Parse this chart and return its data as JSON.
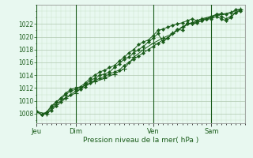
{
  "bg_color": "#e8f8f0",
  "plot_bg_color": "#e8f8f0",
  "grid_major_color": "#b0c8b0",
  "grid_minor_color": "#c8e0c8",
  "line_color": "#1a5c1a",
  "title": "Pression niveau de la mer( hPa )",
  "ylim": [
    1006.5,
    1025.0
  ],
  "yticks": [
    1008,
    1010,
    1012,
    1014,
    1016,
    1018,
    1020,
    1022
  ],
  "day_labels": [
    "Jeu",
    "Dim",
    "Ven",
    "Sam"
  ],
  "day_positions": [
    0,
    48,
    144,
    216
  ],
  "total_hours": 258,
  "series1_x": [
    0,
    6,
    12,
    18,
    24,
    30,
    36,
    42,
    48,
    54,
    60,
    66,
    72,
    78,
    84,
    90,
    96,
    102,
    108,
    114,
    120,
    126,
    132,
    138,
    144,
    150,
    156,
    162,
    168,
    174,
    180,
    186,
    192,
    198,
    204,
    210,
    216,
    222,
    228,
    234,
    240,
    246,
    252
  ],
  "series1_y": [
    1008.3,
    1007.8,
    1008.0,
    1008.5,
    1009.2,
    1009.8,
    1010.4,
    1011.0,
    1011.5,
    1011.8,
    1012.2,
    1012.8,
    1013.2,
    1013.5,
    1013.8,
    1014.2,
    1014.5,
    1014.8,
    1015.5,
    1016.0,
    1016.5,
    1017.0,
    1017.5,
    1018.0,
    1018.5,
    1019.0,
    1019.5,
    1019.8,
    1020.5,
    1021.0,
    1021.5,
    1022.0,
    1022.2,
    1022.3,
    1022.5,
    1022.8,
    1023.2,
    1023.5,
    1023.6,
    1023.5,
    1023.8,
    1024.2,
    1024.3
  ],
  "series2_x": [
    0,
    6,
    12,
    18,
    24,
    30,
    36,
    42,
    48,
    54,
    60,
    66,
    72,
    78,
    84,
    90,
    96,
    102,
    108,
    114,
    120,
    126,
    132,
    138,
    144,
    150,
    156,
    162,
    168,
    174,
    180,
    186,
    192,
    198,
    204,
    210,
    216,
    222,
    228,
    234,
    240,
    246,
    252
  ],
  "series2_y": [
    1008.3,
    1007.9,
    1008.2,
    1009.0,
    1009.8,
    1010.3,
    1011.0,
    1011.5,
    1011.8,
    1012.0,
    1012.5,
    1013.2,
    1013.5,
    1014.0,
    1014.2,
    1014.5,
    1015.2,
    1015.8,
    1016.5,
    1016.8,
    1017.5,
    1018.0,
    1018.5,
    1019.2,
    1019.8,
    1020.5,
    1019.2,
    1019.8,
    1020.5,
    1021.2,
    1021.0,
    1022.2,
    1022.0,
    1022.2,
    1022.5,
    1022.8,
    1022.8,
    1023.2,
    1022.8,
    1022.5,
    1023.0,
    1023.8,
    1024.2
  ],
  "series3_x": [
    0,
    6,
    12,
    18,
    24,
    30,
    36,
    42,
    48,
    54,
    60,
    66,
    72,
    78,
    84,
    90,
    96,
    102,
    108,
    114,
    120,
    126,
    132,
    138,
    144,
    150,
    156,
    162,
    168,
    174,
    180,
    186,
    192,
    198,
    204,
    210,
    216,
    222,
    228,
    234,
    240,
    246,
    252
  ],
  "series3_y": [
    1008.3,
    1007.9,
    1008.2,
    1009.2,
    1009.8,
    1010.5,
    1011.2,
    1011.8,
    1012.0,
    1012.2,
    1012.8,
    1013.5,
    1014.0,
    1014.5,
    1014.8,
    1015.2,
    1015.5,
    1016.2,
    1016.8,
    1017.5,
    1018.0,
    1018.8,
    1019.2,
    1019.5,
    1020.2,
    1021.0,
    1021.2,
    1021.5,
    1021.8,
    1022.0,
    1022.2,
    1022.5,
    1022.8,
    1022.5,
    1022.8,
    1022.8,
    1023.0,
    1023.5,
    1023.2,
    1022.8,
    1023.2,
    1023.8,
    1024.0
  ],
  "series4_x": [
    0,
    12,
    24,
    36,
    48,
    60,
    72,
    84,
    96,
    108,
    120,
    132,
    144,
    156,
    168,
    180,
    192,
    204,
    216,
    228,
    240,
    252
  ],
  "series4_y": [
    1008.3,
    1008.0,
    1009.5,
    1010.5,
    1011.2,
    1012.5,
    1013.0,
    1013.5,
    1014.2,
    1015.0,
    1016.8,
    1018.0,
    1019.0,
    1019.8,
    1020.5,
    1021.5,
    1022.2,
    1022.8,
    1023.2,
    1023.5,
    1023.8,
    1024.3
  ]
}
